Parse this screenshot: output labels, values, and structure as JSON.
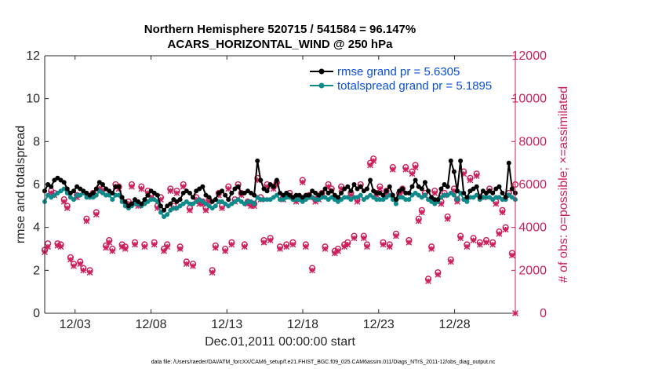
{
  "chart_data": {
    "type": "line",
    "title_line1": "Northern Hemisphere 520715 / 541584 = 96.147%",
    "title_line2": "ACARS_HORIZONTAL_WIND @ 250 hPa",
    "xlabel": "Dec.01,2011 00:00:00 start",
    "ylabel_left": "rmse and totalspread",
    "ylabel_right": "# of obs: o=possible; ×=assimilated",
    "xlim": [
      1,
      32
    ],
    "ylim_left": [
      0,
      12
    ],
    "ylim_right": [
      0,
      12000
    ],
    "x_ticks": [
      3,
      8,
      13,
      18,
      23,
      28
    ],
    "x_tick_labels": [
      "12/03",
      "12/08",
      "12/13",
      "12/18",
      "12/23",
      "12/28"
    ],
    "y_left_ticks": [
      "0",
      "2",
      "4",
      "6",
      "8",
      "10",
      "12"
    ],
    "y_right_ticks": [
      "0",
      "2000",
      "4000",
      "6000",
      "8000",
      "10000",
      "12000"
    ],
    "footnote": "data file: /Users/raeder/DAI/ATM_forcXX/CAM6_setup/f.e21.FHIST_BGC.f09_025.CAM6assim.011/Diags_NTrS_2011-12/obs_diag_output.nc",
    "colors": {
      "rmse": "#000000",
      "spread": "#0f8a8a",
      "obs": "#cc1f5c",
      "legend_text": "#0b4fd8"
    },
    "series": [
      {
        "name": "rmse grand pr = 5.6305",
        "axis": "left",
        "values": [
          5.7,
          6.0,
          5.9,
          6.2,
          6.3,
          6.2,
          6.1,
          5.8,
          5.6,
          5.7,
          5.9,
          5.8,
          5.7,
          5.6,
          5.5,
          5.6,
          5.8,
          6.1,
          6.0,
          5.8,
          5.7,
          5.6,
          5.9,
          5.9,
          5.4,
          5.2,
          5.0,
          5.1,
          5.3,
          5.2,
          5.1,
          5.3,
          5.5,
          5.7,
          5.6,
          5.5,
          5.0,
          4.8,
          5.0,
          5.1,
          5.3,
          5.2,
          5.3,
          5.6,
          5.7,
          5.6,
          5.4,
          5.7,
          5.8,
          5.9,
          5.5,
          5.4,
          5.2,
          5.3,
          5.6,
          5.7,
          5.5,
          5.3,
          5.6,
          5.8,
          5.9,
          5.6,
          5.6,
          5.7,
          5.6,
          5.5,
          7.1,
          6.2,
          5.8,
          5.7,
          6.0,
          5.9,
          6.2,
          5.6,
          5.5,
          5.6,
          5.5,
          5.4,
          5.5,
          5.5,
          5.4,
          5.5,
          5.5,
          5.7,
          5.6,
          5.5,
          5.6,
          5.8,
          5.6,
          5.7,
          5.5,
          5.4,
          5.6,
          5.8,
          5.9,
          5.7,
          6.0,
          5.8,
          5.9,
          5.7,
          5.8,
          6.2,
          5.7,
          5.6,
          5.6,
          5.5,
          5.7,
          5.9,
          5.5,
          5.3,
          5.7,
          5.8,
          5.6,
          5.6,
          5.9,
          6.2,
          5.9,
          5.8,
          6.1,
          5.7,
          5.4,
          5.3,
          5.3,
          5.8,
          6.0,
          5.9,
          7.1,
          6.6,
          5.7,
          7.1,
          5.6,
          5.4,
          5.7,
          5.8,
          5.9,
          5.4,
          5.7,
          5.6,
          5.7,
          5.6,
          5.8,
          5.9,
          5.6,
          5.4,
          7.0,
          5.8,
          5.6
        ]
      },
      {
        "name": "totalspread grand pr = 5.1895",
        "axis": "left",
        "values": [
          5.2,
          5.5,
          5.4,
          5.5,
          5.6,
          5.7,
          5.8,
          5.6,
          5.4,
          5.3,
          5.5,
          5.5,
          5.6,
          5.4,
          5.4,
          5.4,
          5.5,
          5.7,
          5.6,
          5.5,
          5.5,
          5.3,
          5.5,
          5.5,
          5.2,
          5.0,
          4.9,
          5.0,
          5.1,
          5.1,
          5.0,
          5.1,
          5.2,
          5.3,
          5.3,
          5.2,
          4.7,
          4.5,
          4.6,
          4.8,
          4.9,
          4.9,
          5.0,
          5.1,
          5.2,
          5.1,
          5.1,
          5.2,
          5.3,
          5.2,
          5.1,
          5.0,
          4.9,
          5.0,
          5.2,
          5.2,
          5.1,
          5.0,
          5.1,
          5.2,
          5.3,
          5.2,
          5.1,
          5.2,
          5.2,
          5.1,
          5.4,
          5.3,
          5.3,
          5.3,
          5.3,
          5.4,
          5.5,
          5.3,
          5.3,
          5.4,
          5.4,
          5.3,
          5.3,
          5.3,
          5.2,
          5.3,
          5.4,
          5.4,
          5.3,
          5.3,
          5.4,
          5.4,
          5.3,
          5.4,
          5.3,
          5.2,
          5.3,
          5.4,
          5.4,
          5.3,
          5.4,
          5.4,
          5.5,
          5.3,
          5.4,
          5.5,
          5.4,
          5.3,
          5.3,
          5.3,
          5.4,
          5.5,
          5.3,
          5.1,
          5.4,
          5.4,
          5.3,
          5.3,
          5.5,
          5.6,
          5.5,
          5.4,
          5.5,
          5.3,
          5.2,
          5.1,
          5.2,
          5.4,
          5.5,
          5.5,
          5.6,
          5.5,
          5.3,
          5.6,
          5.3,
          5.2,
          5.4,
          5.4,
          5.5,
          5.3,
          5.4,
          5.4,
          5.4,
          5.3,
          5.4,
          5.4,
          5.3,
          5.3,
          5.5,
          5.4,
          5.3
        ]
      },
      {
        "name": "obs possible",
        "axis": "right",
        "values": [
          2950,
          3250,
          5700,
          5600,
          3250,
          3200,
          5300,
          5000,
          2600,
          2300,
          5500,
          2400,
          2100,
          4400,
          2000,
          5600,
          4700,
          5900,
          5800,
          3150,
          3400,
          3000,
          6000,
          5900,
          3200,
          3100,
          5200,
          6000,
          3300,
          5100,
          5900,
          3200,
          5700,
          5500,
          3300,
          5000,
          5400,
          3000,
          3200,
          5800,
          5000,
          5700,
          3100,
          6000,
          2400,
          4900,
          2300,
          5400,
          5200,
          5200,
          4900,
          5300,
          2000,
          3150,
          5600,
          5000,
          3000,
          5900,
          3300,
          5300,
          6000,
          5600,
          3200,
          5200,
          5100,
          5100,
          6300,
          5400,
          3400,
          6000,
          3500,
          5900,
          6100,
          3100,
          5400,
          3200,
          5600,
          3300,
          5300,
          5400,
          6200,
          3200,
          5500,
          2100,
          5300,
          5400,
          5600,
          3100,
          6000,
          5800,
          2900,
          3000,
          5900,
          3200,
          3300,
          5600,
          3600,
          5300,
          6000,
          3600,
          3200,
          7000,
          7200,
          5600,
          5900,
          3300,
          5700,
          3200,
          6800,
          3700,
          5600,
          5800,
          6800,
          3400,
          6600,
          6900,
          4400,
          4800,
          5600,
          1600,
          3100,
          5700,
          1900,
          5200,
          5600,
          4500,
          2500,
          5800,
          5300,
          3600,
          6600,
          3200,
          6300,
          3500,
          6500,
          3300,
          5500,
          3400,
          5800,
          3300,
          5200,
          3800,
          4800,
          4000,
          5600,
          2800,
          6000
        ]
      },
      {
        "name": "obs assimilated",
        "axis": "right",
        "values": [
          2850,
          3100,
          5600,
          5500,
          3150,
          3100,
          5200,
          4900,
          2500,
          2200,
          5400,
          2300,
          2000,
          4300,
          1900,
          5500,
          4600,
          5800,
          5700,
          3050,
          3300,
          2900,
          5900,
          5800,
          3100,
          3000,
          5100,
          5900,
          3200,
          5000,
          5800,
          3100,
          5600,
          5400,
          3200,
          4900,
          5300,
          2900,
          3100,
          5700,
          4900,
          5600,
          3000,
          5900,
          2300,
          4800,
          2200,
          5300,
          5100,
          5100,
          4800,
          5200,
          1900,
          3050,
          5500,
          4900,
          2900,
          5800,
          3200,
          5200,
          5900,
          5500,
          3100,
          5100,
          5000,
          5000,
          6200,
          5300,
          3300,
          5900,
          3400,
          5800,
          6000,
          3000,
          5300,
          3100,
          5500,
          3200,
          5200,
          5300,
          6100,
          3100,
          5400,
          2000,
          5200,
          5300,
          5500,
          3000,
          5900,
          5700,
          2800,
          2900,
          5800,
          3100,
          3200,
          5500,
          3500,
          5200,
          5900,
          3500,
          3100,
          6900,
          7100,
          5500,
          5800,
          3200,
          5600,
          3100,
          6700,
          3600,
          5500,
          5700,
          6700,
          3300,
          6500,
          6800,
          4300,
          4700,
          5500,
          1500,
          3000,
          5600,
          1800,
          5100,
          5500,
          4400,
          2400,
          5700,
          5200,
          3500,
          6500,
          3100,
          6200,
          3400,
          6400,
          3200,
          5400,
          3300,
          5700,
          3200,
          5100,
          3700,
          4700,
          3900,
          5500,
          2700,
          0
        ]
      }
    ]
  }
}
